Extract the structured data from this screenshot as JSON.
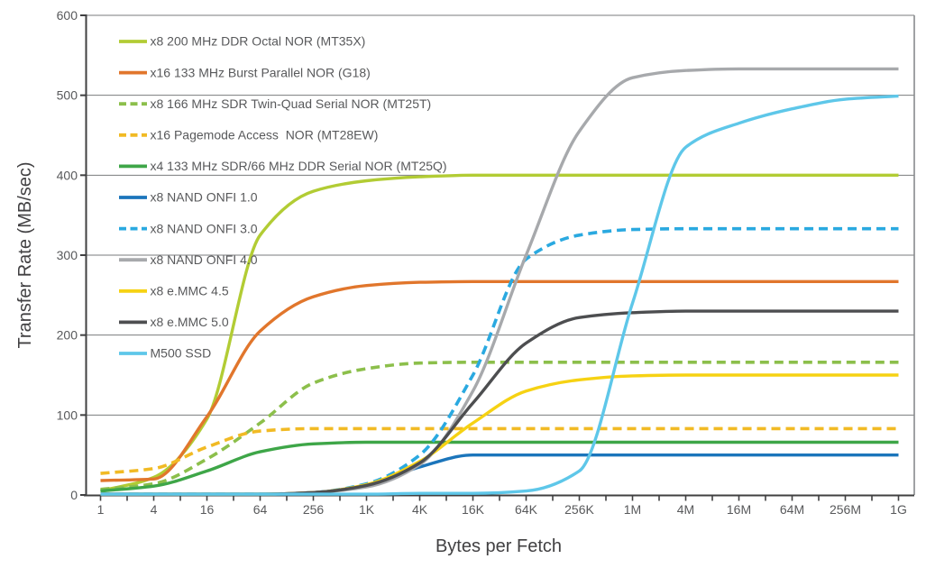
{
  "figure": {
    "background": "#ffffff",
    "axis_color": "#404041",
    "grid_color": "#7a7b7d",
    "frame_color": "#898b8e",
    "tick_label_color": "#58595b",
    "axis_title_color": "#414042"
  },
  "chart_data": {
    "type": "line",
    "title": "",
    "xlabel": "Bytes per Fetch",
    "ylabel": "Transfer Rate (MB/sec)",
    "x_scale": "log4",
    "x_ticks": [
      "1",
      "4",
      "16",
      "64",
      "256",
      "1K",
      "4K",
      "16K",
      "64K",
      "256K",
      "1M",
      "4M",
      "16M",
      "64M",
      "256M",
      "1G"
    ],
    "y_ticks": [
      0,
      100,
      200,
      300,
      400,
      500,
      600
    ],
    "ylim": [
      0,
      600
    ],
    "grid": "horizontal",
    "legend_position": "top-left-inside",
    "series": [
      {
        "id": "mt35x",
        "name": "x8 200 MHz DDR Octal NOR (MT35X)",
        "color": "#b2cc34",
        "dash": "solid",
        "values": [
          5,
          22,
          95,
          325,
          380,
          393,
          398,
          400,
          400,
          400,
          400,
          400,
          400,
          400,
          400,
          400
        ]
      },
      {
        "id": "g18",
        "name": "x16 133 MHz Burst Parallel NOR (G18)",
        "color": "#e1762c",
        "dash": "solid",
        "values": [
          18,
          20,
          98,
          205,
          248,
          262,
          266,
          267,
          267,
          267,
          267,
          267,
          267,
          267,
          267,
          267
        ]
      },
      {
        "id": "mt25t",
        "name": "x8 166 MHz SDR Twin-Quad Serial NOR (MT25T)",
        "color": "#8cbf4b",
        "dash": "dashed",
        "values": [
          7,
          14,
          45,
          90,
          140,
          158,
          165,
          166,
          166,
          166,
          166,
          166,
          166,
          166,
          166,
          166
        ]
      },
      {
        "id": "mt28ew",
        "name": "x16 Pagemode Access  NOR (MT28EW)",
        "color": "#f1ba24",
        "dash": "dashed",
        "values": [
          27,
          33,
          60,
          80,
          83,
          83,
          83,
          83,
          83,
          83,
          83,
          83,
          83,
          83,
          83,
          83
        ]
      },
      {
        "id": "mt25q",
        "name": "x4 133 MHz SDR/66 MHz DDR Serial NOR (MT25Q)",
        "color": "#3ea648",
        "dash": "solid",
        "values": [
          5,
          11,
          30,
          54,
          64,
          66,
          66,
          66,
          66,
          66,
          66,
          66,
          66,
          66,
          66,
          66
        ]
      },
      {
        "id": "onfi1",
        "name": "x8 NAND ONFI 1.0",
        "color": "#1b75bb",
        "dash": "solid",
        "values": [
          1,
          1,
          1,
          1,
          3,
          12,
          35,
          50,
          50,
          50,
          50,
          50,
          50,
          50,
          50,
          50
        ]
      },
      {
        "id": "onfi3",
        "name": "x8 NAND ONFI 3.0",
        "color": "#2aa9e0",
        "dash": "dashed",
        "values": [
          1,
          1,
          1,
          1,
          3,
          14,
          50,
          150,
          295,
          325,
          332,
          333,
          333,
          333,
          333,
          333
        ]
      },
      {
        "id": "onfi4",
        "name": "x8 NAND ONFI 4.0",
        "color": "#a7a9ac",
        "dash": "solid",
        "values": [
          1,
          1,
          1,
          1,
          3,
          10,
          38,
          130,
          300,
          455,
          522,
          531,
          533,
          533,
          533,
          533
        ]
      },
      {
        "id": "emmc45",
        "name": "x8 e.MMC 4.5",
        "color": "#f6d213",
        "dash": "solid",
        "values": [
          1,
          1,
          1,
          1,
          3,
          13,
          42,
          90,
          130,
          144,
          149,
          150,
          150,
          150,
          150,
          150
        ]
      },
      {
        "id": "emmc50",
        "name": "x8 e.MMC 5.0",
        "color": "#4d4e50",
        "dash": "solid",
        "values": [
          1,
          1,
          1,
          1,
          3,
          12,
          40,
          115,
          190,
          222,
          228,
          230,
          230,
          230,
          230,
          230
        ]
      },
      {
        "id": "m500",
        "name": "M500 SSD",
        "color": "#5ec7e9",
        "dash": "solid",
        "values": [
          1,
          1,
          1,
          1,
          1,
          1,
          2,
          2,
          5,
          30,
          240,
          435,
          465,
          483,
          495,
          499
        ]
      }
    ]
  }
}
